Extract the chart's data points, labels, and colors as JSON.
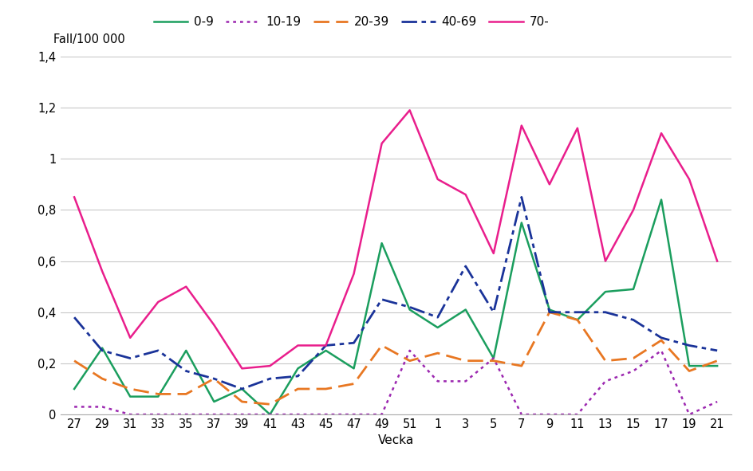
{
  "x_ticks": [
    "27",
    "29",
    "31",
    "33",
    "35",
    "37",
    "39",
    "41",
    "43",
    "45",
    "47",
    "49",
    "51",
    "1",
    "3",
    "5",
    "7",
    "9",
    "11",
    "13",
    "15",
    "17",
    "19",
    "21"
  ],
  "series": {
    "0-9": [
      0.1,
      0.26,
      0.07,
      0.07,
      0.25,
      0.05,
      0.1,
      0.0,
      0.18,
      0.25,
      0.18,
      0.67,
      0.41,
      0.34,
      0.41,
      0.22,
      0.75,
      0.41,
      0.37,
      0.48,
      0.49,
      0.84,
      0.19,
      0.19
    ],
    "10-19": [
      0.03,
      0.03,
      0.0,
      0.0,
      0.0,
      0.0,
      0.0,
      0.0,
      0.0,
      0.0,
      0.0,
      0.0,
      0.25,
      0.13,
      0.13,
      0.22,
      0.0,
      0.0,
      0.0,
      0.13,
      0.17,
      0.25,
      0.0,
      0.05
    ],
    "20-39": [
      0.21,
      0.14,
      0.1,
      0.08,
      0.08,
      0.14,
      0.05,
      0.04,
      0.1,
      0.1,
      0.12,
      0.27,
      0.21,
      0.24,
      0.21,
      0.21,
      0.19,
      0.4,
      0.37,
      0.21,
      0.22,
      0.29,
      0.17,
      0.21
    ],
    "40-69": [
      0.38,
      0.25,
      0.22,
      0.25,
      0.17,
      0.14,
      0.1,
      0.14,
      0.15,
      0.27,
      0.28,
      0.45,
      0.42,
      0.38,
      0.58,
      0.4,
      0.85,
      0.4,
      0.4,
      0.4,
      0.37,
      0.3,
      0.27,
      0.25
    ],
    "70-": [
      0.85,
      0.56,
      0.3,
      0.44,
      0.5,
      0.35,
      0.18,
      0.19,
      0.27,
      0.27,
      0.55,
      1.06,
      1.19,
      0.92,
      0.86,
      0.63,
      1.13,
      0.9,
      1.12,
      0.6,
      0.8,
      1.1,
      0.92,
      0.6
    ]
  },
  "colors": {
    "0-9": "#1B9E5E",
    "10-19": "#9C27B0",
    "20-39": "#E87722",
    "40-69": "#1A3399",
    "70-": "#E91E8C"
  },
  "ylabel": "Fall/100 000",
  "xlabel": "Vecka",
  "ylim": [
    0,
    1.4
  ],
  "yticks": [
    0,
    0.2,
    0.4,
    0.6,
    0.8,
    1.0,
    1.2,
    1.4
  ],
  "ytick_labels": [
    "0",
    "0,2",
    "0,4",
    "0,6",
    "0,8",
    "1",
    "1,2",
    "1,4"
  ],
  "background_color": "#FFFFFF",
  "grid_color": "#C8C8C8"
}
